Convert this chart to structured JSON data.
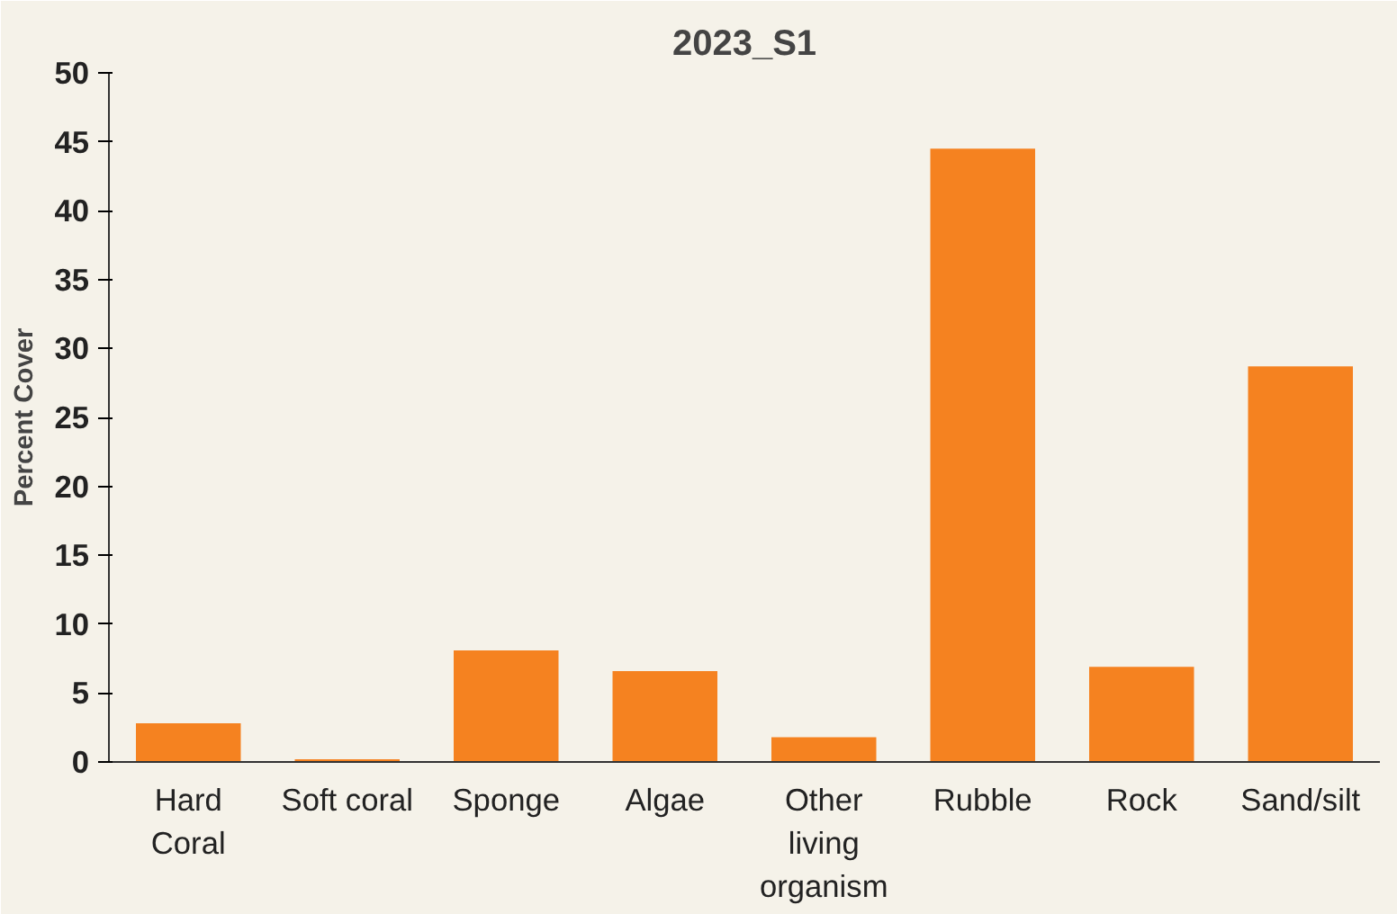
{
  "chart_data": {
    "type": "bar",
    "title": "2023_S1",
    "ylabel": "Percent Cover",
    "categories": [
      "Hard\nCoral",
      "Soft coral",
      "Sponge",
      "Algae",
      "Other\nliving\norganism",
      "Rubble",
      "Rock",
      "Sand/silt"
    ],
    "values": [
      2.8,
      0.2,
      8.1,
      6.6,
      1.8,
      44.5,
      6.9,
      28.7
    ],
    "color": "#f58220",
    "ylim": [
      0,
      50
    ],
    "yticks": [
      0,
      5,
      10,
      15,
      20,
      25,
      30,
      35,
      40,
      45,
      50
    ],
    "grid": false
  }
}
